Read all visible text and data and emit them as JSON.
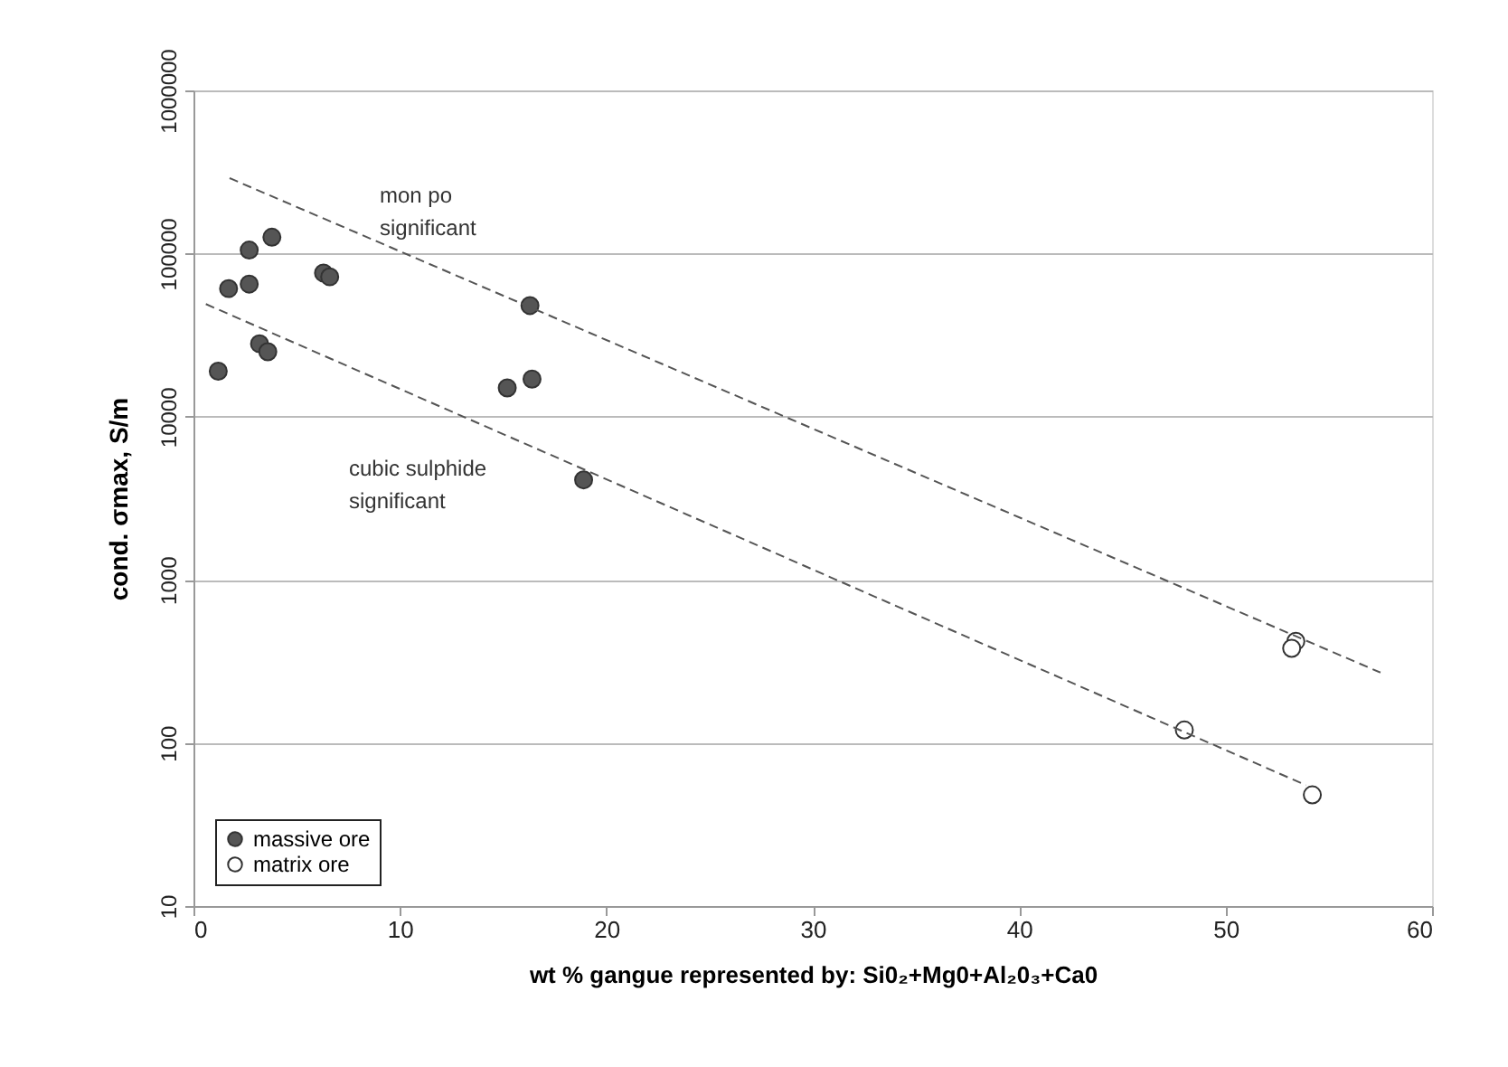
{
  "chart_data": {
    "type": "scatter",
    "xlabel": "wt % gangue represented by: Si0₂+Mg0+Al₂0₃+Ca0",
    "ylabel": "cond. σmax, S/m",
    "log": "y",
    "grid": "y",
    "legend": "bottom left",
    "marker": "circle",
    "xlim": [
      0,
      60
    ],
    "xticks": [
      0,
      10,
      20,
      30,
      40,
      50,
      60
    ],
    "ylim": [
      10,
      1000000
    ],
    "yticks": [
      10,
      100,
      1000,
      10000,
      100000,
      1000000
    ],
    "series": [
      {
        "name": "massive ore",
        "color": "#555555",
        "x": [
          1.2,
          1.7,
          2.7,
          2.7,
          3.8,
          3.2,
          3.6,
          6.3,
          6.6,
          16.3,
          15.2,
          16.4,
          18.9
        ],
        "values": [
          19000,
          61000,
          105000,
          65000,
          126000,
          28000,
          25000,
          76000,
          72000,
          48000,
          15000,
          17000,
          4100
        ]
      },
      {
        "name": "matrix ore",
        "color": "#ffffff",
        "x": [
          53.4,
          53.2,
          48.0,
          54.2
        ],
        "values": [
          420,
          380,
          120,
          48
        ]
      },
      {
        "type": "line",
        "marker": "none",
        "color": "#555555",
        "line_style": "dashed",
        "x": [
          1.75,
          57.5
        ],
        "values": [
          290000,
          270
        ]
      },
      {
        "type": "line",
        "marker": "none",
        "color": "#555555",
        "line_style": "dashed",
        "x": [
          0.6,
          53.9
        ],
        "values": [
          49000,
          55
        ]
      }
    ],
    "annotations": [
      "mon po significant",
      "cubic sulphide significant"
    ]
  }
}
